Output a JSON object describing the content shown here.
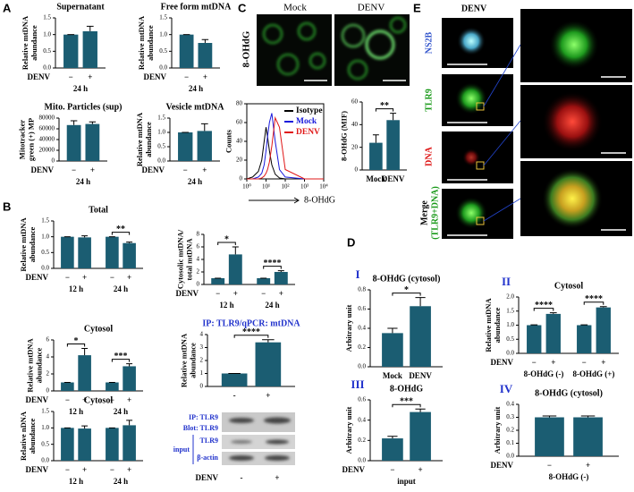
{
  "panels": [
    "A",
    "B",
    "C",
    "D",
    "E"
  ],
  "blot": {
    "ip": "IP: TLR9",
    "blot": "Blot: TLR9",
    "input": "input",
    "tlr9": "TLR9",
    "actin": "β-actin",
    "x_label": "DENV",
    "categories": [
      "-",
      "+"
    ]
  },
  "images": {
    "C": {
      "stain": "8-OHdG",
      "labels": [
        "Mock",
        "DENV"
      ]
    },
    "E": {
      "title": "DENV",
      "channels": [
        "NS2B",
        "TLR9",
        "DNA"
      ],
      "merge": [
        "Merge",
        "(TLR9+DNA)"
      ]
    }
  },
  "chart_data": [
    {
      "type": "bar",
      "title": "Supernatant",
      "ylabel": [
        "Relative mtDNA",
        "abundance"
      ],
      "ylim": [
        0,
        1.5
      ],
      "yticks": [
        {
          "value": 0,
          "label": "0.0"
        },
        {
          "value": 0.5,
          "label": "0.5"
        },
        {
          "value": 1,
          "label": "1.0"
        },
        {
          "value": 1.5,
          "label": "1.5"
        }
      ],
      "x_label": "DENV",
      "color": "#1b5d72",
      "groups": [
        {
          "name": "24 h",
          "categories": [
            "−",
            "+"
          ],
          "values": [
            1.0,
            1.1
          ],
          "errors": [
            0,
            0.15
          ]
        }
      ]
    },
    {
      "type": "bar",
      "title": "Free form mtDNA",
      "ylabel": [
        "Relative mtDNA",
        "abundance"
      ],
      "ylim": [
        0,
        1.5
      ],
      "yticks": [
        {
          "value": 0,
          "label": "0.0"
        },
        {
          "value": 0.5,
          "label": "0.5"
        },
        {
          "value": 1,
          "label": "1.0"
        },
        {
          "value": 1.5,
          "label": "1.5"
        }
      ],
      "x_label": "DENV",
      "color": "#1b5d72",
      "groups": [
        {
          "name": "24 h",
          "categories": [
            "−",
            "+"
          ],
          "values": [
            1.0,
            0.75
          ],
          "errors": [
            0,
            0.1
          ]
        }
      ]
    },
    {
      "type": "bar",
      "title": "Mito. Particles (sup)",
      "ylabel": [
        "Mitotracker",
        "green (+) MP"
      ],
      "ylim": [
        0,
        80000
      ],
      "yticks": [
        0,
        20000,
        40000,
        60000,
        80000
      ],
      "x_label": "DENV",
      "color": "#1b5d72",
      "groups": [
        {
          "name": "24 h",
          "categories": [
            "−",
            "+"
          ],
          "values": [
            67000,
            69000
          ],
          "errors": [
            8000,
            4000
          ]
        }
      ]
    },
    {
      "type": "bar",
      "title": "Vesicle mtDNA",
      "ylabel": [
        "Relative mtDNA",
        "abundance"
      ],
      "ylim": [
        0,
        1.5
      ],
      "yticks": [
        {
          "value": 0,
          "label": "0.0"
        },
        {
          "value": 0.5,
          "label": "0.5"
        },
        {
          "value": 1,
          "label": "1.0"
        },
        {
          "value": 1.5,
          "label": "1.5"
        }
      ],
      "x_label": "DENV",
      "color": "#1b5d72",
      "groups": [
        {
          "name": "24 h",
          "categories": [
            "−",
            "+"
          ],
          "values": [
            1.0,
            1.05
          ],
          "errors": [
            0,
            0.25
          ]
        }
      ]
    },
    {
      "type": "bar",
      "title": "Total",
      "ylabel": [
        "Relative mtDNA",
        "abundance"
      ],
      "ylim": [
        0,
        1.5
      ],
      "yticks": [
        {
          "value": 0,
          "label": "0.0"
        },
        {
          "value": 0.5,
          "label": "0.5"
        },
        {
          "value": 1,
          "label": "1.0"
        },
        {
          "value": 1.5,
          "label": "1.5"
        }
      ],
      "x_label": "DENV",
      "color": "#1b5d72",
      "groups": [
        {
          "name": "12 h",
          "categories": [
            "−",
            "+"
          ],
          "values": [
            1.0,
            0.98
          ],
          "errors": [
            0,
            0.05
          ]
        },
        {
          "name": "24 h",
          "categories": [
            "−",
            "+"
          ],
          "values": [
            1.0,
            0.8
          ],
          "errors": [
            0,
            0.03
          ],
          "sig": "**"
        }
      ]
    },
    {
      "type": "bar",
      "ylabel": [
        "Cytosolic mtDNA/",
        "total mtDNA"
      ],
      "ylim": [
        0,
        8
      ],
      "yticks": [
        0,
        2,
        4,
        6,
        8
      ],
      "x_label": "DENV",
      "color": "#1b5d72",
      "groups": [
        {
          "name": "12 h",
          "categories": [
            "−",
            "+"
          ],
          "values": [
            1,
            4.8
          ],
          "errors": [
            0,
            1.2
          ],
          "sig": "*"
        },
        {
          "name": "24 h",
          "categories": [
            "−",
            "+"
          ],
          "values": [
            1,
            2.0
          ],
          "errors": [
            0,
            0.2
          ],
          "sig": "****"
        }
      ]
    },
    {
      "type": "bar",
      "title": "Cytosol",
      "ylabel": [
        "Relative mtDNA",
        "abundance"
      ],
      "ylim": [
        0,
        6
      ],
      "yticks": [
        0,
        2,
        4,
        6
      ],
      "x_label": "DENV",
      "color": "#1b5d72",
      "groups": [
        {
          "name": "12 h",
          "categories": [
            "−",
            "+"
          ],
          "values": [
            1,
            4.2
          ],
          "errors": [
            0,
            0.8
          ],
          "sig": "*"
        },
        {
          "name": "24 h",
          "categories": [
            "−",
            "+"
          ],
          "values": [
            1,
            2.9
          ],
          "errors": [
            0,
            0.3
          ],
          "sig": "***"
        }
      ]
    },
    {
      "type": "bar",
      "title": "IP: TLR9/qPCR: mtDNA",
      "title_color": "#2233cc",
      "ylabel": [
        "Relative mtDNA",
        "abundance"
      ],
      "ylim": [
        0,
        4
      ],
      "yticks": [
        0,
        1,
        2,
        3,
        4
      ],
      "color": "#1b5d72",
      "groups": [
        {
          "categories": [
            "-",
            "+"
          ],
          "values": [
            1,
            3.4
          ],
          "errors": [
            0,
            0.2
          ],
          "sig": "****"
        }
      ]
    },
    {
      "type": "bar",
      "title": "Cytosol",
      "ylabel": [
        "Relative nDNA",
        "abundance"
      ],
      "ylim": [
        0,
        1.5
      ],
      "yticks": [
        {
          "value": 0,
          "label": "0.0"
        },
        {
          "value": 0.5,
          "label": "0.5"
        },
        {
          "value": 1,
          "label": "1.0"
        },
        {
          "value": 1.5,
          "label": "1.5"
        }
      ],
      "x_label": "DENV",
      "color": "#1b5d72",
      "groups": [
        {
          "name": "12 h",
          "categories": [
            "−",
            "+"
          ],
          "values": [
            1.0,
            0.98
          ],
          "errors": [
            0,
            0.08
          ]
        },
        {
          "name": "24 h",
          "categories": [
            "−",
            "+"
          ],
          "values": [
            1.0,
            1.08
          ],
          "errors": [
            0,
            0.15
          ]
        }
      ]
    },
    {
      "type": "line",
      "xscale": "log",
      "ylabel": [
        "Counts"
      ],
      "x_label": "8-OHdG",
      "xlim": [
        1,
        10000
      ],
      "xticks": [
        {
          "value": 1,
          "label": "10⁰"
        },
        {
          "value": 10,
          "label": "10¹"
        },
        {
          "value": 100,
          "label": "10²"
        },
        {
          "value": 1000,
          "label": "10³"
        },
        {
          "value": 10000,
          "label": "10⁴"
        }
      ],
      "ylim": [
        0,
        80
      ],
      "yticks": [
        0,
        20,
        40,
        60,
        80
      ],
      "legend": "upper right",
      "x": [
        1,
        2,
        4,
        6,
        8,
        10,
        12,
        15,
        20,
        30,
        50,
        100,
        1000,
        10000
      ],
      "series": [
        {
          "name": "Isotype",
          "color": "#000000",
          "values": [
            0,
            2,
            8,
            20,
            40,
            55,
            45,
            30,
            15,
            5,
            1,
            0,
            0,
            0
          ]
        },
        {
          "name": "Mock",
          "color": "#1a1adc",
          "values": [
            0,
            0,
            2,
            6,
            15,
            30,
            45,
            60,
            70,
            40,
            10,
            2,
            0,
            0
          ]
        },
        {
          "name": "DENV",
          "color": "#e01818",
          "values": [
            0,
            0,
            0,
            1,
            3,
            6,
            10,
            18,
            35,
            65,
            55,
            10,
            0,
            0
          ]
        }
      ]
    },
    {
      "type": "bar",
      "ylabel": [
        "8-OHdG (MIF)"
      ],
      "ylim": [
        0,
        60
      ],
      "yticks": [
        0,
        20,
        40,
        60
      ],
      "color": "#1b5d72",
      "groups": [
        {
          "categories": [
            "Mock",
            "DENV"
          ],
          "values": [
            24,
            44
          ],
          "errors": [
            7,
            6
          ],
          "sig": "**"
        }
      ]
    },
    {
      "type": "bar",
      "numeral": "I",
      "title": "8-OHdG (cytosol)",
      "ylabel": [
        "Arbitrary unit"
      ],
      "ylim": [
        0,
        0.8
      ],
      "yticks": [
        {
          "value": 0,
          "label": "0.0"
        },
        {
          "value": 0.2,
          "label": "0.2"
        },
        {
          "value": 0.4,
          "label": "0.4"
        },
        {
          "value": 0.6,
          "label": "0.6"
        },
        {
          "value": 0.8,
          "label": "0.8"
        }
      ],
      "color": "#1b5d72",
      "groups": [
        {
          "categories": [
            "Mock",
            "DENV"
          ],
          "values": [
            0.35,
            0.63
          ],
          "errors": [
            0.05,
            0.09
          ],
          "sig": "*"
        }
      ]
    },
    {
      "type": "bar",
      "numeral": "II",
      "title": "Cytosol",
      "ylabel": [
        "Relative mtDNA",
        "abundance"
      ],
      "ylim": [
        0,
        2
      ],
      "yticks": [
        {
          "value": 0,
          "label": "0.0"
        },
        {
          "value": 0.5,
          "label": "0.5"
        },
        {
          "value": 1,
          "label": "1.0"
        },
        {
          "value": 1.5,
          "label": "1.5"
        },
        {
          "value": 2,
          "label": "2.0"
        }
      ],
      "x_label": "DENV",
      "color": "#1b5d72",
      "groups": [
        {
          "name": "8-OHdG (-)",
          "categories": [
            "−",
            "+"
          ],
          "values": [
            1,
            1.4
          ],
          "errors": [
            0.01,
            0.04
          ],
          "sig": "****"
        },
        {
          "name": "8-OHdG (+)",
          "categories": [
            "−",
            "+"
          ],
          "values": [
            1,
            1.63
          ],
          "errors": [
            0.01,
            0.03
          ],
          "sig": "****"
        }
      ]
    },
    {
      "type": "bar",
      "numeral": "III",
      "title": "8-OHdG",
      "ylabel": [
        "Arbitrary unit"
      ],
      "ylim": [
        0,
        0.6
      ],
      "yticks": [
        {
          "value": 0,
          "label": "0.0"
        },
        {
          "value": 0.2,
          "label": "0.2"
        },
        {
          "value": 0.4,
          "label": "0.4"
        },
        {
          "value": 0.6,
          "label": "0.6"
        }
      ],
      "x_label": "DENV",
      "color": "#1b5d72",
      "groups": [
        {
          "name": "input",
          "categories": [
            "−",
            "+"
          ],
          "values": [
            0.22,
            0.48
          ],
          "errors": [
            0.02,
            0.03
          ],
          "sig": "***"
        }
      ]
    },
    {
      "type": "bar",
      "numeral": "IV",
      "title": "8-OHdG (cytosol)",
      "ylabel": [
        "Arbitrary unit"
      ],
      "ylim": [
        0,
        0.4
      ],
      "yticks": [
        {
          "value": 0,
          "label": "0.0"
        },
        {
          "value": 0.1,
          "label": "0.1"
        },
        {
          "value": 0.2,
          "label": "0.2"
        },
        {
          "value": 0.3,
          "label": "0.3"
        },
        {
          "value": 0.4,
          "label": "0.4"
        }
      ],
      "x_label": "DENV",
      "color": "#1b5d72",
      "groups": [
        {
          "name": "8-OHdG (-)",
          "categories": [
            "−",
            "+"
          ],
          "values": [
            0.3,
            0.3
          ],
          "errors": [
            0.01,
            0.01
          ]
        }
      ]
    }
  ]
}
